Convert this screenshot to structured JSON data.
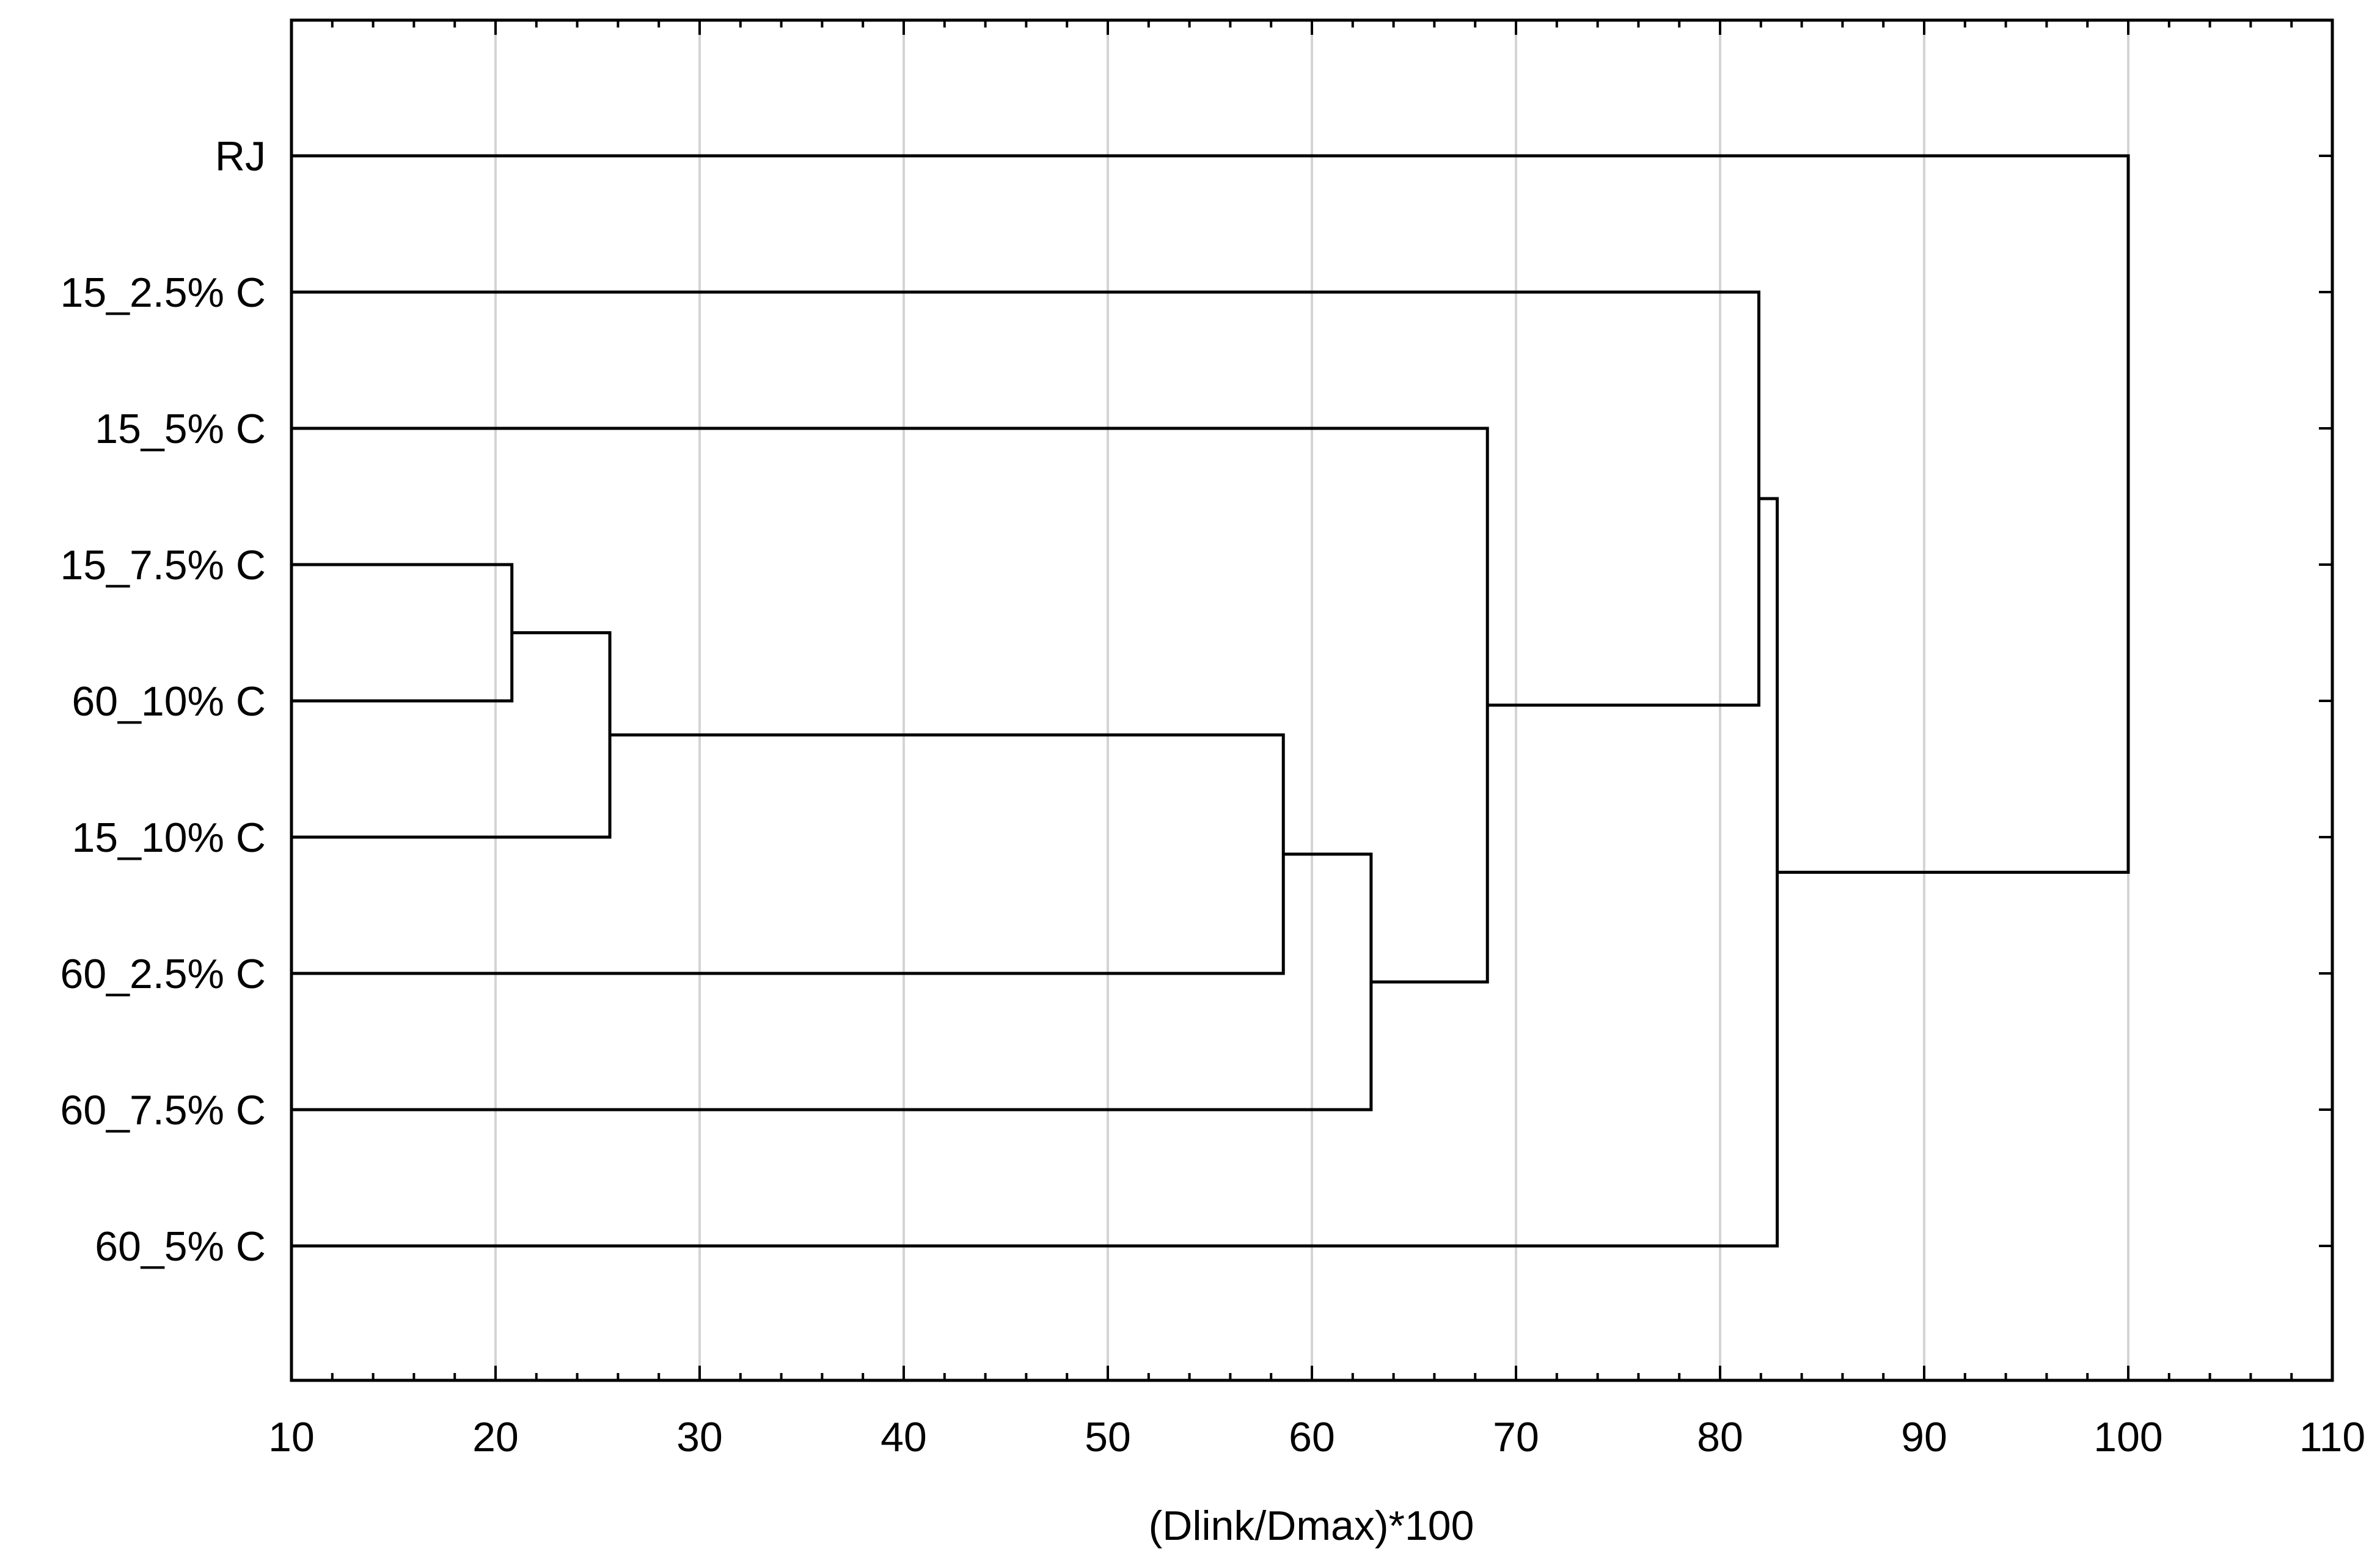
{
  "chart_data": {
    "type": "dendrogram",
    "orientation": "horizontal",
    "title": "",
    "xlabel": "(Dlink/Dmax)*100",
    "ylabel": "",
    "xlim": [
      10,
      110
    ],
    "x_ticks": [
      10,
      20,
      30,
      40,
      50,
      60,
      70,
      80,
      90,
      100,
      110
    ],
    "grid": "vertical",
    "leaves": [
      "RJ",
      "15_2.5% C",
      "15_5% C",
      "15_7.5% C",
      "60_10% C",
      "15_10% C",
      "60_2.5% C",
      "60_7.5% C",
      "60_5% C"
    ],
    "merges": [
      {
        "id": "m1",
        "children": [
          "15_7.5% C",
          "60_10% C"
        ],
        "height": 20.8
      },
      {
        "id": "m2",
        "children": [
          "m1",
          "15_10% C"
        ],
        "height": 25.6
      },
      {
        "id": "m3",
        "children": [
          "m2",
          "60_2.5% C"
        ],
        "height": 58.6
      },
      {
        "id": "m4",
        "children": [
          "m3",
          "60_7.5% C"
        ],
        "height": 62.9
      },
      {
        "id": "m5",
        "children": [
          "15_5% C",
          "m4"
        ],
        "height": 68.6
      },
      {
        "id": "m6",
        "children": [
          "15_2.5% C",
          "m5"
        ],
        "height": 81.9
      },
      {
        "id": "m7",
        "children": [
          "m6",
          "60_5% C"
        ],
        "height": 82.8
      },
      {
        "id": "m8",
        "children": [
          "RJ",
          "m7"
        ],
        "height": 100
      }
    ]
  }
}
